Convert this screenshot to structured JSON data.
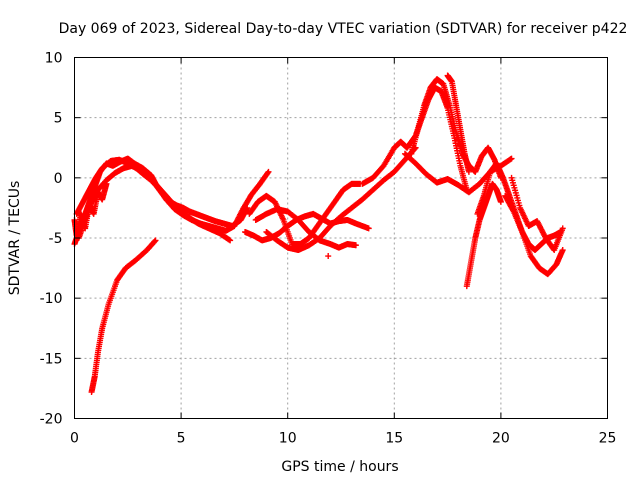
{
  "chart_data": {
    "type": "scatter",
    "title": "Day 069 of 2023, Sidereal Day-to-day VTEC variation (SDTVAR) for receiver p422",
    "xlabel": "GPS time / hours",
    "ylabel": "SDTVAR / TECUs",
    "xlim": [
      0,
      25
    ],
    "ylim": [
      -20,
      10
    ],
    "xticks": [
      "0",
      "5",
      "10",
      "15",
      "20",
      "25"
    ],
    "yticks": [
      "10",
      "5",
      "0",
      "-5",
      "-10",
      "-15",
      "-20"
    ],
    "grid": true,
    "marker": "plus",
    "color": "#ff0000",
    "series": [
      {
        "name": "arc-rising-low",
        "x": [
          0.8,
          0.95,
          1.1,
          1.3,
          1.6,
          2.0,
          2.4,
          2.9,
          3.4,
          3.8
        ],
        "y": [
          -17.8,
          -16.5,
          -14.5,
          -12.5,
          -10.5,
          -8.5,
          -7.5,
          -6.8,
          -6.0,
          -5.2
        ]
      },
      {
        "name": "arc-morning-main",
        "x": [
          0.0,
          0.2,
          0.4,
          0.6,
          0.8,
          1.0,
          1.2,
          1.5,
          1.8,
          2.1,
          2.5,
          2.8,
          3.2,
          3.6,
          3.9,
          4.2,
          4.5,
          4.8,
          5.1,
          5.4,
          5.7,
          6.0,
          6.3,
          6.6,
          7.0,
          7.4,
          7.8,
          8.1
        ],
        "y": [
          -5.5,
          -4.5,
          -3.5,
          -2.5,
          -1.5,
          -0.5,
          0.5,
          1.2,
          1.0,
          1.3,
          1.6,
          1.2,
          0.8,
          0.2,
          -0.8,
          -1.5,
          -2.0,
          -2.3,
          -2.5,
          -2.8,
          -3.0,
          -3.2,
          -3.4,
          -3.6,
          -3.8,
          -4.0,
          -3.5,
          -2.5
        ]
      },
      {
        "name": "arc-morning-lower",
        "x": [
          0.2,
          0.5,
          0.8,
          1.1,
          1.5,
          1.9,
          2.3,
          2.7,
          3.1,
          3.5,
          3.9,
          4.3,
          4.7,
          5.1,
          5.5,
          5.9,
          6.3,
          6.7,
          7.1,
          7.5,
          7.9,
          8.3,
          8.7,
          9.1
        ],
        "y": [
          -5.0,
          -3.5,
          -2.0,
          -1.0,
          -0.2,
          0.4,
          0.8,
          1.0,
          0.6,
          0.0,
          -0.8,
          -1.8,
          -2.6,
          -3.1,
          -3.5,
          -3.8,
          -4.0,
          -4.2,
          -4.4,
          -4.0,
          -2.6,
          -1.4,
          -0.5,
          0.5
        ]
      },
      {
        "name": "arc-morning-third",
        "x": [
          0.1,
          0.4,
          0.7,
          1.0,
          1.3,
          1.7,
          2.1,
          2.5,
          2.9,
          3.3,
          3.8,
          4.3,
          4.8,
          5.3,
          5.8,
          6.3,
          6.8,
          7.3
        ],
        "y": [
          -3.0,
          -2.0,
          -1.0,
          0.0,
          0.8,
          1.4,
          1.5,
          1.2,
          0.8,
          0.2,
          -0.5,
          -1.5,
          -2.5,
          -3.2,
          -3.8,
          -4.2,
          -4.6,
          -5.2
        ]
      },
      {
        "name": "arc-early-scatter",
        "x": [
          0.0,
          0.1,
          0.3,
          0.5,
          0.7,
          0.9,
          1.1,
          1.3,
          1.5
        ],
        "y": [
          -3.5,
          -4.8,
          -3.0,
          -4.2,
          -2.2,
          -3.0,
          -1.2,
          -1.8,
          -0.5
        ]
      },
      {
        "name": "arc-midday-a",
        "x": [
          8.0,
          8.4,
          8.8,
          9.2,
          9.6,
          10.0,
          10.4,
          10.8,
          11.2,
          11.6,
          12.0,
          12.4,
          12.8,
          13.2,
          13.8
        ],
        "y": [
          -4.5,
          -4.8,
          -5.2,
          -5.0,
          -4.6,
          -4.0,
          -3.5,
          -3.2,
          -3.0,
          -3.4,
          -3.8,
          -3.6,
          -3.5,
          -3.8,
          -4.2
        ]
      },
      {
        "name": "arc-midday-b",
        "x": [
          8.5,
          9.0,
          9.5,
          10.0,
          10.5,
          11.0,
          11.5,
          12.0,
          12.4,
          12.8,
          13.2
        ],
        "y": [
          -3.5,
          -3.0,
          -2.6,
          -2.8,
          -3.5,
          -4.5,
          -5.2,
          -5.5,
          -5.8,
          -5.5,
          -5.6
        ]
      },
      {
        "name": "arc-midday-c",
        "x": [
          8.2,
          8.6,
          9.0,
          9.4,
          9.8,
          10.2,
          10.6,
          11.0,
          11.4,
          11.8,
          12.2,
          12.6,
          13.0,
          13.4
        ],
        "y": [
          -3.0,
          -2.0,
          -1.5,
          -2.0,
          -3.5,
          -5.5,
          -5.5,
          -5.0,
          -4.0,
          -3.0,
          -2.0,
          -1.0,
          -0.5,
          -0.5
        ]
      },
      {
        "name": "arc-midday-d",
        "x": [
          9.0,
          9.5,
          10.0,
          10.5,
          11.0,
          11.5,
          12.0,
          12.5,
          13.0,
          13.5,
          14.0,
          14.5,
          15.0,
          15.5,
          16.0
        ],
        "y": [
          -4.5,
          -5.2,
          -5.8,
          -6.0,
          -5.6,
          -5.0,
          -4.0,
          -3.2,
          -2.5,
          -1.8,
          -1.0,
          -0.2,
          0.5,
          1.5,
          2.5
        ]
      },
      {
        "name": "arc-afternoon-rise",
        "x": [
          13.5,
          14.0,
          14.5,
          15.0,
          15.3,
          15.6,
          16.0,
          16.3,
          16.6,
          16.9,
          17.2,
          17.5,
          17.8,
          18.1,
          18.4
        ],
        "y": [
          -0.5,
          0.0,
          1.0,
          2.5,
          3.0,
          2.5,
          3.5,
          5.0,
          6.5,
          7.5,
          7.2,
          5.8,
          3.5,
          1.0,
          -1.0
        ]
      },
      {
        "name": "arc-afternoon-peak",
        "x": [
          15.8,
          16.1,
          16.4,
          16.7,
          17.0,
          17.3,
          17.6,
          17.9,
          18.2,
          18.5,
          18.8,
          19.1,
          19.4,
          19.7,
          20.0
        ],
        "y": [
          2.0,
          4.0,
          6.0,
          7.5,
          8.2,
          7.8,
          6.0,
          3.8,
          2.0,
          1.0,
          0.5,
          1.8,
          2.5,
          1.5,
          0.0
        ]
      },
      {
        "name": "arc-afternoon-spike",
        "x": [
          17.5,
          17.7,
          17.9,
          18.1,
          18.3,
          18.5
        ],
        "y": [
          8.5,
          8.0,
          6.0,
          4.0,
          2.0,
          0.5
        ]
      },
      {
        "name": "arc-afternoon-loop",
        "x": [
          15.5,
          16.0,
          16.5,
          17.0,
          17.5,
          18.0,
          18.5,
          19.0,
          19.5,
          20.0,
          20.5
        ],
        "y": [
          2.0,
          1.2,
          0.3,
          -0.4,
          -0.1,
          -0.6,
          -1.2,
          -0.5,
          0.5,
          1.0,
          1.6
        ]
      },
      {
        "name": "arc-late-dip",
        "x": [
          18.4,
          18.6,
          18.8,
          19.0,
          19.2,
          19.4,
          19.6,
          19.8,
          20.0
        ],
        "y": [
          -9.0,
          -7.0,
          -5.0,
          -3.5,
          -2.5,
          -1.5,
          -0.5,
          -1.0,
          -2.0
        ]
      },
      {
        "name": "arc-late-mid",
        "x": [
          18.9,
          19.2,
          19.5,
          19.8,
          20.1,
          20.4,
          20.7,
          21.0,
          21.3,
          21.6,
          21.9,
          22.2,
          22.5,
          22.8
        ],
        "y": [
          -3.0,
          -1.5,
          0.5,
          1.2,
          0.0,
          -1.5,
          -3.0,
          -4.5,
          -5.5,
          -6.0,
          -5.5,
          -5.0,
          -4.8,
          -4.5
        ]
      },
      {
        "name": "arc-late-tail-a",
        "x": [
          20.2,
          20.6,
          21.0,
          21.4,
          21.8,
          22.2,
          22.6,
          22.9
        ],
        "y": [
          -1.5,
          -2.8,
          -4.5,
          -6.5,
          -7.5,
          -8.0,
          -7.2,
          -6.0
        ]
      },
      {
        "name": "arc-late-tail-b",
        "x": [
          20.5,
          20.9,
          21.3,
          21.7,
          22.1,
          22.5,
          22.9
        ],
        "y": [
          0.0,
          -2.5,
          -4.0,
          -3.6,
          -5.0,
          -6.0,
          -4.2
        ]
      },
      {
        "name": "outlier",
        "x": [
          11.9
        ],
        "y": [
          -6.5
        ]
      }
    ]
  }
}
